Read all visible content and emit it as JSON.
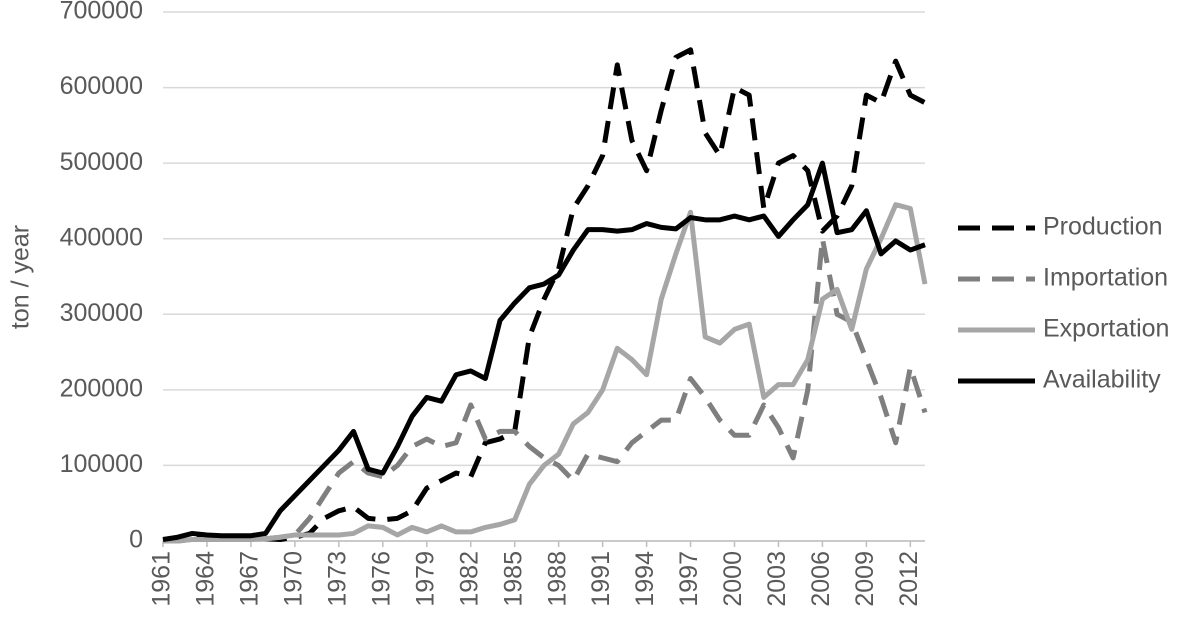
{
  "chart_data": {
    "type": "line",
    "y_label": "ton / year",
    "x": [
      1961,
      1962,
      1963,
      1964,
      1965,
      1966,
      1967,
      1968,
      1969,
      1970,
      1971,
      1972,
      1973,
      1974,
      1975,
      1976,
      1977,
      1978,
      1979,
      1980,
      1981,
      1982,
      1983,
      1984,
      1985,
      1986,
      1987,
      1988,
      1989,
      1990,
      1991,
      1992,
      1993,
      1994,
      1995,
      1996,
      1997,
      1998,
      1999,
      2000,
      2001,
      2002,
      2003,
      2004,
      2005,
      2006,
      2007,
      2008,
      2009,
      2010,
      2011,
      2012,
      2013
    ],
    "xlim": [
      1961,
      2013
    ],
    "xticks": [
      1961,
      1964,
      1967,
      1970,
      1973,
      1976,
      1979,
      1982,
      1985,
      1988,
      1991,
      1994,
      1997,
      2000,
      2003,
      2006,
      2009,
      2012
    ],
    "ylim": [
      0,
      700000
    ],
    "yticks": [
      0,
      100000,
      200000,
      300000,
      400000,
      500000,
      600000,
      700000
    ],
    "grid": true,
    "legend": "right",
    "series": [
      {
        "name": "Production",
        "color": "#000000",
        "dashed": true,
        "values": [
          0,
          2000,
          5000,
          5000,
          3000,
          3000,
          3000,
          3000,
          2000,
          5000,
          10000,
          30000,
          40000,
          45000,
          30000,
          28000,
          30000,
          40000,
          70000,
          80000,
          90000,
          85000,
          130000,
          135000,
          145000,
          270000,
          320000,
          360000,
          440000,
          470000,
          510000,
          630000,
          530000,
          490000,
          570000,
          640000,
          650000,
          540000,
          510000,
          600000,
          590000,
          440000,
          500000,
          510000,
          490000,
          410000,
          430000,
          470000,
          590000,
          580000,
          635000,
          590000,
          580000
        ]
      },
      {
        "name": "Importation",
        "color": "#7f7f7f",
        "dashed": true,
        "values": [
          0,
          0,
          2000,
          2000,
          2000,
          2000,
          2000,
          3000,
          5000,
          8000,
          30000,
          60000,
          90000,
          105000,
          90000,
          85000,
          100000,
          125000,
          135000,
          125000,
          130000,
          180000,
          135000,
          145000,
          145000,
          125000,
          110000,
          100000,
          80000,
          115000,
          110000,
          105000,
          130000,
          145000,
          160000,
          160000,
          215000,
          190000,
          160000,
          140000,
          140000,
          180000,
          150000,
          110000,
          200000,
          400000,
          300000,
          290000,
          240000,
          190000,
          130000,
          230000,
          170000
        ]
      },
      {
        "name": "Exportation",
        "color": "#a6a6a6",
        "dashed": false,
        "values": [
          0,
          0,
          2000,
          2000,
          2000,
          2000,
          2000,
          3000,
          5000,
          8000,
          8000,
          8000,
          8000,
          10000,
          20000,
          18000,
          8000,
          18000,
          12000,
          20000,
          12000,
          12000,
          18000,
          22000,
          28000,
          75000,
          100000,
          115000,
          155000,
          170000,
          200000,
          255000,
          240000,
          220000,
          320000,
          380000,
          435000,
          270000,
          262000,
          280000,
          287000,
          190000,
          207000,
          207000,
          240000,
          320000,
          333000,
          280000,
          360000,
          400000,
          445000,
          440000,
          340000
        ]
      },
      {
        "name": "Availability",
        "color": "#000000",
        "dashed": false,
        "values": [
          2000,
          5000,
          10000,
          8000,
          7000,
          7000,
          7000,
          10000,
          40000,
          60000,
          80000,
          100000,
          120000,
          145000,
          95000,
          90000,
          125000,
          165000,
          190000,
          185000,
          220000,
          225000,
          215000,
          292000,
          315000,
          335000,
          340000,
          352000,
          385000,
          412000,
          412000,
          410000,
          412000,
          420000,
          415000,
          413000,
          428000,
          425000,
          425000,
          430000,
          425000,
          430000,
          403000,
          425000,
          445000,
          500000,
          408000,
          412000,
          437000,
          380000,
          397000,
          385000,
          392000
        ]
      }
    ]
  }
}
